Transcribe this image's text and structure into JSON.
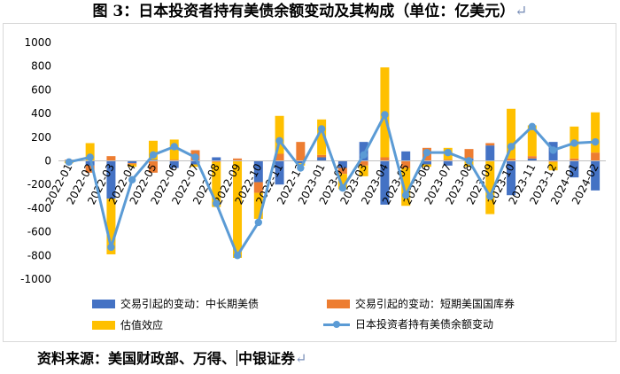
{
  "title": "图 3：日本投资者持有美债余额变动及其构成（单位：亿美元）",
  "source_text": "资料来源：美国财政部、万得、中银证券",
  "colors": {
    "long_term": "#4472c4",
    "short_term": "#ed7d31",
    "valuation": "#ffc000",
    "total_line": "#5b9bd5"
  },
  "chart_data": {
    "type": "bar",
    "stacked": true,
    "categories": [
      "2022-01",
      "2022-02",
      "2022-03",
      "2022-04",
      "2022-05",
      "2022-06",
      "2022-07",
      "2022-08",
      "2022-09",
      "2022-10",
      "2022-11",
      "2022-12",
      "2023-01",
      "2023-02",
      "2023-03",
      "2023-04",
      "2023-05",
      "2023-06",
      "2023-07",
      "2023-08",
      "2023-09",
      "2023-10",
      "2023-11",
      "2023-12",
      "2024-01",
      "2024-02"
    ],
    "tick_labels": [
      "2022-01",
      "2022-02",
      "2022-03",
      "2022-04",
      "2022-05",
      "2022-06",
      "2022-07",
      "2022-08",
      "2022-09",
      "2022-10",
      "2022-11",
      "2022-12",
      "2023-01",
      "2023-02",
      "2023-03",
      "2023-04",
      "2023-05",
      "2023-06",
      "2023-07",
      "2023-08",
      "2023-09",
      "2023-10",
      "2023-11",
      "2023-12",
      "2024-01",
      "2024-02"
    ],
    "series": [
      {
        "name": "交易引起的变动：中长期美债",
        "type": "bar",
        "values": [
          5,
          -40,
          -320,
          -20,
          10,
          -60,
          -30,
          30,
          5,
          -180,
          -200,
          -20,
          30,
          -60,
          160,
          -370,
          80,
          -30,
          -40,
          20,
          130,
          -290,
          20,
          160,
          -140,
          -250
        ]
      },
      {
        "name": "交易引起的变动：短期美国国库券",
        "type": "bar",
        "values": [
          5,
          -60,
          40,
          -10,
          -100,
          10,
          90,
          -10,
          15,
          -90,
          60,
          160,
          20,
          -50,
          -40,
          30,
          -60,
          110,
          10,
          80,
          20,
          20,
          20,
          -10,
          20,
          70
        ]
      },
      {
        "name": "估值效应",
        "type": "bar",
        "values": [
          -20,
          150,
          -470,
          -20,
          160,
          170,
          -20,
          -380,
          -820,
          -220,
          320,
          -20,
          300,
          -130,
          -90,
          760,
          -320,
          -20,
          100,
          -50,
          -450,
          420,
          260,
          -70,
          270,
          340
        ]
      },
      {
        "name": "日本投资者持有美债余额变动",
        "type": "line",
        "values": [
          -10,
          30,
          -730,
          -160,
          50,
          120,
          30,
          -360,
          -800,
          -520,
          170,
          -60,
          270,
          -230,
          50,
          390,
          -290,
          70,
          70,
          0,
          -300,
          120,
          290,
          90,
          150,
          160
        ]
      }
    ],
    "yticks": [
      -1000,
      -800,
      -600,
      -400,
      -200,
      0,
      200,
      400,
      600,
      800,
      1000
    ],
    "ylim": [
      -1000,
      1000
    ],
    "grid": false,
    "legend_position": "bottom"
  }
}
